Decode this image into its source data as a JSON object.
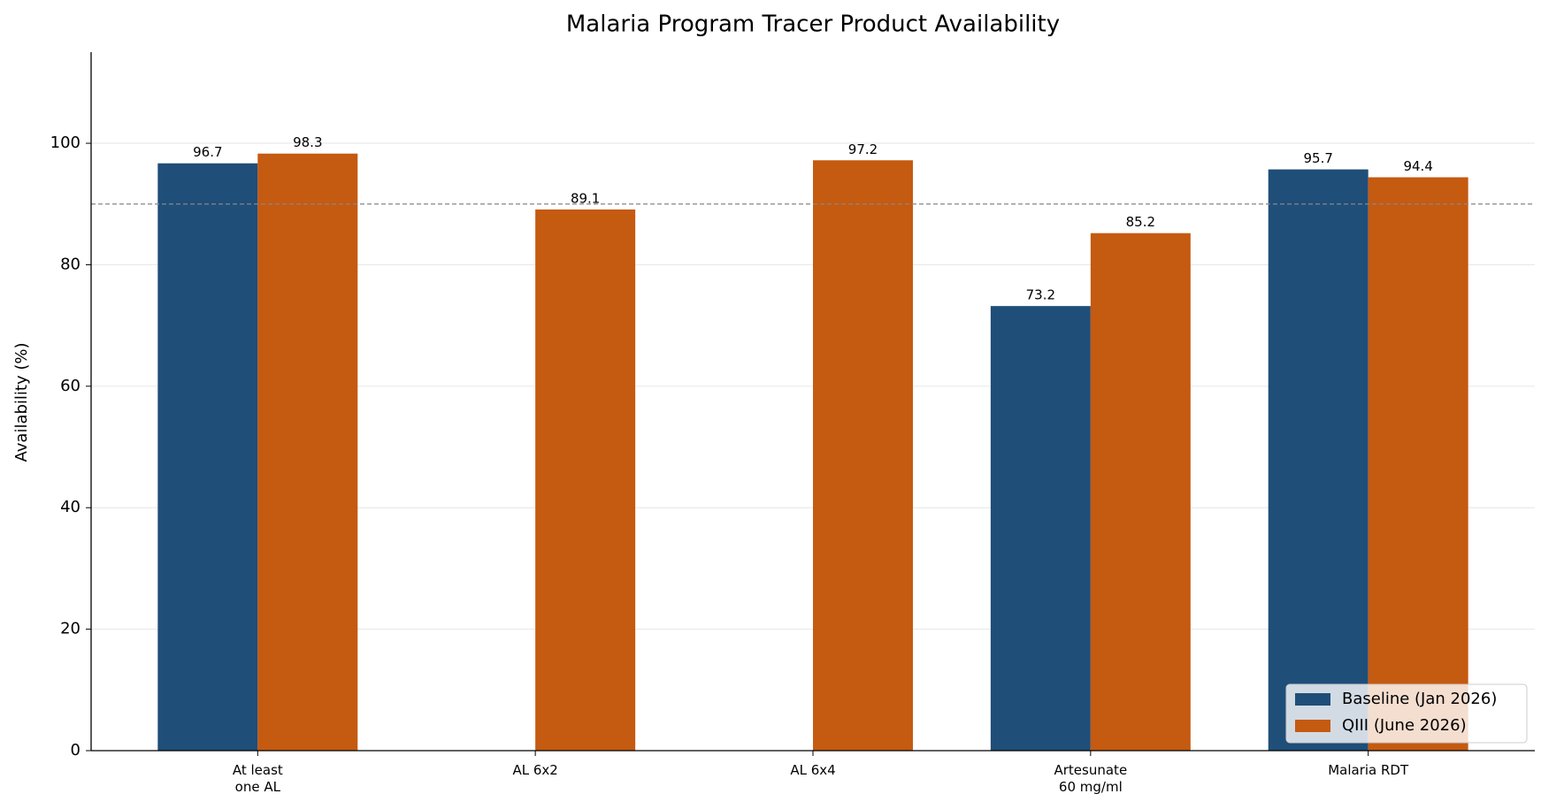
{
  "chart_data": {
    "type": "bar",
    "title": "Malaria Program Tracer Product Availability",
    "y_label": "Availability (%)",
    "categories": [
      "At least\none AL",
      "AL 6x2",
      "AL 6x4",
      "Artesunate\n60 mg/ml",
      "Malaria RDT"
    ],
    "series": [
      {
        "name": "Baseline (Jan 2026)",
        "color": "#1f4e79",
        "values": [
          96.7,
          null,
          null,
          73.2,
          95.7
        ]
      },
      {
        "name": "QIII (June 2026)",
        "color": "#c55a11",
        "values": [
          98.3,
          89.1,
          97.2,
          85.2,
          94.4
        ]
      }
    ],
    "ylim": [
      0,
      115
    ],
    "yticks": [
      0,
      20,
      40,
      60,
      80,
      100
    ],
    "grid": true,
    "reference_line": 90,
    "legend": "lower right"
  }
}
